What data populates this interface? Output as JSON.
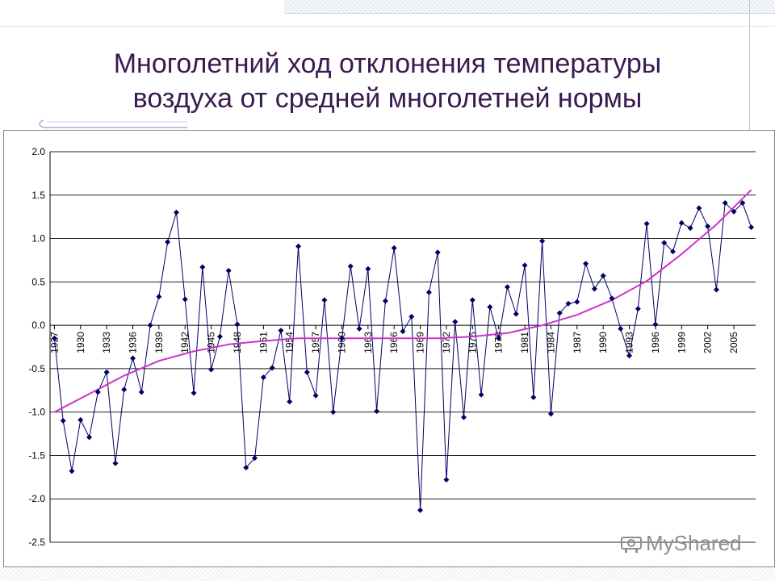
{
  "slide": {
    "title_line1": "Многолетний ход отклонения температуры",
    "title_line2": "воздуха от средней многолетней нормы"
  },
  "watermark": {
    "text": "MyShared",
    "icon": "projector-icon"
  },
  "colors": {
    "series": "#000066",
    "trend": "#cc33cc",
    "grid": "#000000",
    "title": "#3a1a50"
  },
  "chart_data": {
    "type": "line",
    "xlim": [
      1927,
      2008
    ],
    "ylim": [
      -2.5,
      2.0
    ],
    "y_ticks": [
      2.0,
      1.5,
      1.0,
      0.5,
      0.0,
      -0.5,
      -1.0,
      -1.5,
      -2.0,
      -2.5
    ],
    "y_tick_labels": [
      "2.0",
      "1.5",
      "1.0",
      "0.5",
      "0.0",
      "-0.5",
      "-1.0",
      "-1.5",
      "-2.0",
      "-2.5"
    ],
    "x_ticks": [
      1927,
      1930,
      1933,
      1936,
      1939,
      1942,
      1945,
      1948,
      1951,
      1954,
      1957,
      1960,
      1963,
      1966,
      1969,
      1972,
      1975,
      1978,
      1981,
      1984,
      1987,
      1990,
      1993,
      1996,
      1999,
      2002,
      2005
    ],
    "x_tick_labels": [
      "1927",
      "1930",
      "1933",
      "1936",
      "1939",
      "1942",
      "1945",
      "1948",
      "1951",
      "1954",
      "1957",
      "1960",
      "1963",
      "1966",
      "1969",
      "1972",
      "1975",
      "1978",
      "1981",
      "1984",
      "1987",
      "1990",
      "1993",
      "1996",
      "1999",
      "2002",
      "2005"
    ],
    "grid": "horizontal",
    "legend": "none",
    "series": [
      {
        "style": "line-markers",
        "x": [
          1927,
          1928,
          1929,
          1930,
          1931,
          1932,
          1933,
          1934,
          1935,
          1936,
          1937,
          1938,
          1939,
          1940,
          1941,
          1942,
          1943,
          1944,
          1945,
          1946,
          1947,
          1948,
          1949,
          1950,
          1951,
          1952,
          1953,
          1954,
          1955,
          1956,
          1957,
          1958,
          1959,
          1960,
          1961,
          1962,
          1963,
          1964,
          1965,
          1966,
          1967,
          1968,
          1969,
          1970,
          1971,
          1972,
          1973,
          1974,
          1975,
          1976,
          1977,
          1978,
          1979,
          1980,
          1981,
          1982,
          1983,
          1984,
          1985,
          1986,
          1987,
          1988,
          1989,
          1990,
          1991,
          1992,
          1993,
          1994,
          1995,
          1996,
          1997,
          1998,
          1999,
          2000,
          2001,
          2002,
          2003,
          2004,
          2005,
          2006,
          2007
        ],
        "y": [
          -0.15,
          -1.1,
          -1.68,
          -1.09,
          -1.29,
          -0.77,
          -0.54,
          -1.59,
          -0.74,
          -0.38,
          -0.77,
          0.0,
          0.33,
          0.96,
          1.3,
          0.3,
          -0.78,
          0.67,
          -0.51,
          -0.13,
          0.63,
          0.01,
          -1.64,
          -1.53,
          -0.6,
          -0.49,
          -0.06,
          -0.88,
          0.91,
          -0.54,
          -0.81,
          0.29,
          -1.0,
          -0.15,
          0.68,
          -0.04,
          0.65,
          -0.99,
          0.28,
          0.89,
          -0.07,
          0.1,
          -2.13,
          0.38,
          0.84,
          -1.78,
          0.04,
          -1.06,
          0.29,
          -0.8,
          0.21,
          -0.15,
          0.44,
          0.13,
          0.69,
          -0.83,
          0.97,
          -1.02,
          0.14,
          0.25,
          0.27,
          0.71,
          0.42,
          0.57,
          0.31,
          -0.04,
          -0.35,
          0.19,
          1.17,
          0.01,
          0.95,
          0.85,
          1.18,
          1.12,
          1.35,
          1.14,
          0.41,
          1.41,
          1.31,
          1.41,
          1.13
        ]
      },
      {
        "style": "trend-line",
        "x": [
          1927,
          1931,
          1935,
          1939,
          1943,
          1947,
          1951,
          1955,
          1959,
          1963,
          1967,
          1971,
          1975,
          1979,
          1983,
          1987,
          1991,
          1995,
          1999,
          2003,
          2007
        ],
        "y": [
          -1.0,
          -0.79,
          -0.58,
          -0.41,
          -0.3,
          -0.22,
          -0.18,
          -0.15,
          -0.15,
          -0.15,
          -0.15,
          -0.15,
          -0.13,
          -0.09,
          0.0,
          0.12,
          0.29,
          0.51,
          0.82,
          1.16,
          1.56
        ]
      }
    ]
  }
}
